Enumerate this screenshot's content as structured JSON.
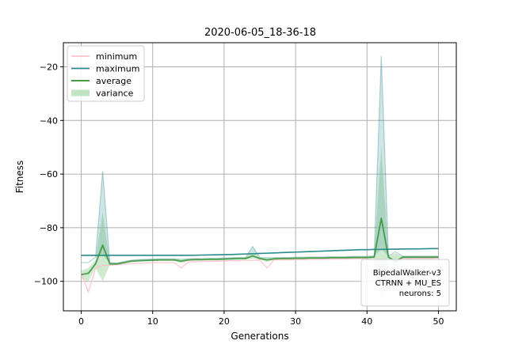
{
  "chart_data": {
    "type": "line",
    "title": "2020-06-05_18-36-18",
    "xlabel": "Generations",
    "ylabel": "Fitness",
    "xlim": [
      -2.5,
      52.5
    ],
    "ylim": [
      -111,
      -11
    ],
    "xticks": [
      0,
      10,
      20,
      30,
      40,
      50
    ],
    "yticks": [
      -100,
      -80,
      -60,
      -40,
      -20
    ],
    "grid": true,
    "legend_position": "top-left",
    "annotation": {
      "lines": [
        "BipedalWalker-v3",
        "CTRNN + MU_ES",
        "neurons: 5"
      ],
      "position": "bottom-right"
    },
    "colors": {
      "minimum": "#ffc0cb",
      "maximum": "#2a8a8c",
      "average": "#2e8b2e",
      "variance": "#a8d8a8"
    },
    "legend": [
      "minimum",
      "maximum",
      "average",
      "variance"
    ],
    "series": [
      {
        "name": "minimum",
        "x": [
          0,
          1,
          2,
          3,
          4,
          5,
          6,
          7,
          8,
          9,
          10,
          11,
          12,
          13,
          14,
          15,
          16,
          17,
          18,
          19,
          20,
          21,
          22,
          23,
          24,
          25,
          26,
          27,
          28,
          29,
          30,
          31,
          32,
          33,
          34,
          35,
          36,
          37,
          38,
          39,
          40,
          41,
          42,
          43,
          44,
          45,
          46,
          47,
          48,
          49,
          50
        ],
        "values": [
          -97,
          -104,
          -95,
          -94,
          -94,
          -93.8,
          -93.6,
          -93.4,
          -93.3,
          -93.2,
          -93.1,
          -93,
          -93,
          -93,
          -95,
          -92.8,
          -92.7,
          -92.6,
          -92.5,
          -92.5,
          -92.4,
          -92.3,
          -92.3,
          -92.2,
          -92.2,
          -92.1,
          -95,
          -92,
          -92,
          -92,
          -91.9,
          -91.9,
          -91.8,
          -91.8,
          -91.8,
          -91.7,
          -91.7,
          -91.7,
          -91.6,
          -91.6,
          -91.6,
          -92,
          -106,
          -92,
          -92,
          -91.5,
          -91.5,
          -91.4,
          -91.4,
          -91.4,
          -91.3
        ]
      },
      {
        "name": "maximum",
        "x": [
          0,
          1,
          2,
          3,
          4,
          5,
          6,
          7,
          8,
          9,
          10,
          11,
          12,
          13,
          14,
          15,
          16,
          17,
          18,
          19,
          20,
          21,
          22,
          23,
          24,
          25,
          26,
          27,
          28,
          29,
          30,
          31,
          32,
          33,
          34,
          35,
          36,
          37,
          38,
          39,
          40,
          41,
          42,
          43,
          44,
          45,
          46,
          47,
          48,
          49,
          50
        ],
        "values": [
          -90.3,
          -90.3,
          -90.3,
          -90.3,
          -90.3,
          -90.3,
          -90.3,
          -90.3,
          -90.3,
          -90.3,
          -90.3,
          -90.3,
          -90.3,
          -90.3,
          -90.3,
          -90.3,
          -90.25,
          -90.2,
          -90.15,
          -90.1,
          -90.05,
          -90,
          -89.9,
          -89.8,
          -89.7,
          -89.6,
          -89.5,
          -89.4,
          -89.3,
          -89.2,
          -89.1,
          -89,
          -88.9,
          -88.8,
          -88.7,
          -88.6,
          -88.5,
          -88.4,
          -88.3,
          -88.2,
          -88.2,
          -88.1,
          -88.1,
          -88,
          -88,
          -87.95,
          -87.9,
          -87.9,
          -87.85,
          -87.8,
          -87.8
        ]
      },
      {
        "name": "average",
        "x": [
          0,
          1,
          2,
          3,
          4,
          5,
          6,
          7,
          8,
          9,
          10,
          11,
          12,
          13,
          14,
          15,
          16,
          17,
          18,
          19,
          20,
          21,
          22,
          23,
          24,
          25,
          26,
          27,
          28,
          29,
          30,
          31,
          32,
          33,
          34,
          35,
          36,
          37,
          38,
          39,
          40,
          41,
          42,
          43,
          44,
          45,
          46,
          47,
          48,
          49,
          50
        ],
        "values": [
          -97.5,
          -97,
          -93.5,
          -86.5,
          -93.5,
          -93.5,
          -93,
          -92.5,
          -92.3,
          -92.2,
          -92.1,
          -92,
          -92,
          -92,
          -92.5,
          -92,
          -91.9,
          -91.9,
          -91.8,
          -91.8,
          -91.7,
          -91.6,
          -91.5,
          -91.5,
          -90.5,
          -91.5,
          -92,
          -91.6,
          -91.5,
          -91.5,
          -91.4,
          -91.4,
          -91.3,
          -91.3,
          -91.3,
          -91.2,
          -91.2,
          -91.2,
          -91.1,
          -91.1,
          -91.1,
          -91,
          -76.5,
          -91,
          -92.5,
          -91,
          -91,
          -91,
          -91,
          -91,
          -91
        ]
      },
      {
        "name": "variance",
        "x": [
          0,
          1,
          2,
          3,
          4,
          5,
          6,
          7,
          8,
          9,
          10,
          11,
          12,
          13,
          14,
          15,
          16,
          17,
          18,
          19,
          20,
          21,
          22,
          23,
          24,
          25,
          26,
          27,
          28,
          29,
          30,
          31,
          32,
          33,
          34,
          35,
          36,
          37,
          38,
          39,
          40,
          41,
          42,
          43,
          44,
          45,
          46,
          47,
          48,
          49,
          50
        ],
        "upper": [
          -96,
          -95,
          -92,
          -74,
          -93,
          -93.2,
          -92.6,
          -92.1,
          -91.9,
          -91.8,
          -91.7,
          -91.6,
          -91.6,
          -91.6,
          -91.8,
          -91.6,
          -91.5,
          -91.5,
          -91.4,
          -91.4,
          -91.3,
          -91.2,
          -91.1,
          -91.1,
          -89.5,
          -91.1,
          -91.2,
          -91.2,
          -91.1,
          -91.1,
          -91,
          -91,
          -90.9,
          -90.9,
          -90.9,
          -90.8,
          -90.8,
          -90.8,
          -90.7,
          -90.7,
          -90.7,
          -90.5,
          -50,
          -90.5,
          -89.5,
          -90.6,
          -90.6,
          -90.6,
          -90.6,
          -90.6,
          -90.6
        ],
        "lower": [
          -99,
          -100,
          -95,
          -100,
          -94,
          -93.8,
          -93.4,
          -92.9,
          -92.7,
          -92.6,
          -92.5,
          -92.4,
          -92.4,
          -92.4,
          -93.2,
          -92.4,
          -92.3,
          -92.3,
          -92.2,
          -92.2,
          -92.1,
          -92,
          -91.9,
          -91.9,
          -91.5,
          -91.9,
          -92.8,
          -92,
          -91.9,
          -91.9,
          -91.8,
          -91.8,
          -91.7,
          -91.7,
          -91.7,
          -91.6,
          -91.6,
          -91.6,
          -91.5,
          -91.5,
          -91.5,
          -91.5,
          -103,
          -91.5,
          -95.5,
          -91.4,
          -91.4,
          -91.4,
          -91.4,
          -91.4,
          -91.4
        ]
      },
      {
        "name": "maximum-variance",
        "x": [
          0,
          1,
          2,
          3,
          4,
          5,
          6,
          7,
          8,
          9,
          10,
          11,
          12,
          13,
          14,
          15,
          16,
          17,
          18,
          19,
          20,
          21,
          22,
          23,
          24,
          25,
          26,
          27,
          28,
          29,
          30,
          31,
          32,
          33,
          34,
          35,
          36,
          37,
          38,
          39,
          40,
          41,
          42,
          43,
          44,
          45,
          46,
          47,
          48,
          49,
          50
        ],
        "values": [
          -93,
          -93,
          -91,
          -59,
          -93,
          -93.2,
          -92.6,
          -92.1,
          -91.9,
          -91.8,
          -91.7,
          -91.6,
          -91.6,
          -91.6,
          -91.8,
          -91.6,
          -91.5,
          -91.5,
          -91.4,
          -91.4,
          -91.3,
          -91.2,
          -91.1,
          -91.1,
          -87,
          -91.1,
          -91.2,
          -91.2,
          -91.1,
          -91.1,
          -91,
          -91,
          -90.9,
          -90.9,
          -90.9,
          -90.8,
          -90.8,
          -90.8,
          -90.7,
          -90.7,
          -90.7,
          -90.5,
          -16,
          -90.5,
          -89,
          -90.6,
          -90.6,
          -90.6,
          -90.6,
          -90.6,
          -90.6
        ]
      }
    ]
  }
}
